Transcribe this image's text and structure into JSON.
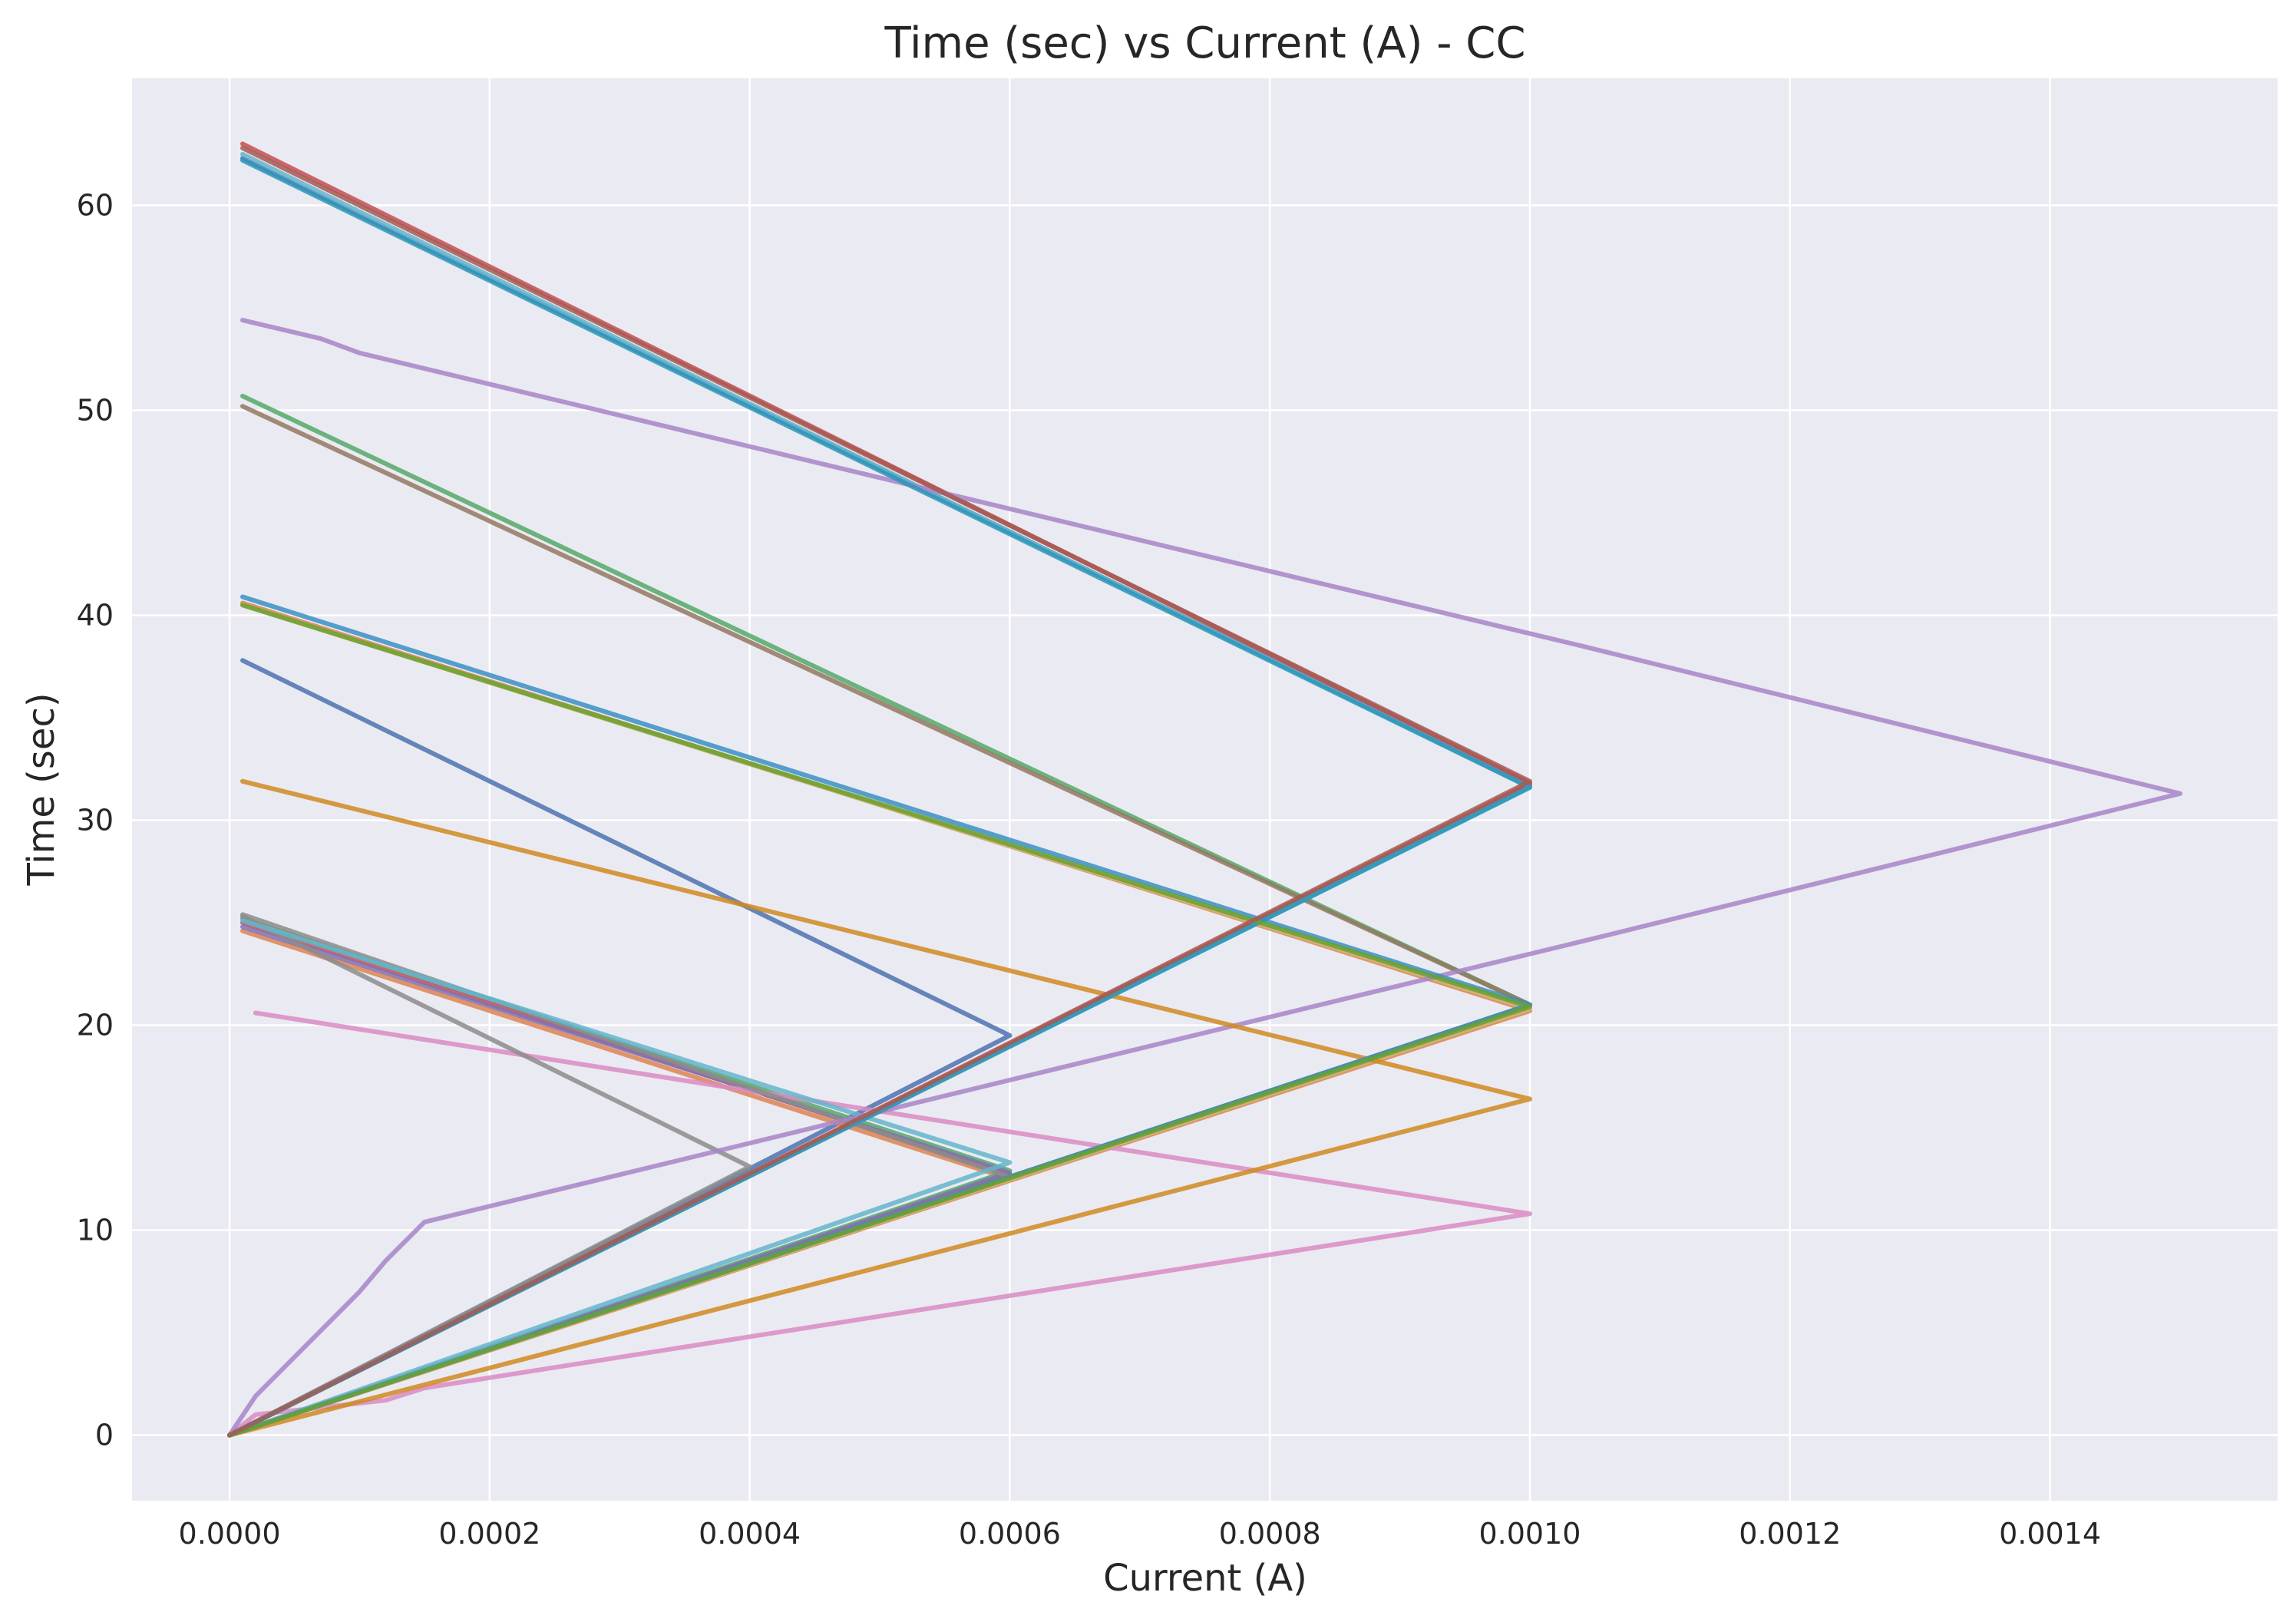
{
  "chart_data": {
    "type": "line",
    "title": "Time (sec) vs Current (A) - CC",
    "xlabel": "Current (A)",
    "ylabel": "Time (sec)",
    "xlim": [
      -7.5e-05,
      0.001575
    ],
    "ylim": [
      -3.2,
      66.2
    ],
    "x_ticks": [
      {
        "value": 0.0,
        "label": "0.0000"
      },
      {
        "value": 0.0002,
        "label": "0.0002"
      },
      {
        "value": 0.0004,
        "label": "0.0004"
      },
      {
        "value": 0.0006,
        "label": "0.0006"
      },
      {
        "value": 0.0008,
        "label": "0.0008"
      },
      {
        "value": 0.001,
        "label": "0.0010"
      },
      {
        "value": 0.0012,
        "label": "0.0012"
      },
      {
        "value": 0.0014,
        "label": "0.0014"
      }
    ],
    "y_ticks": [
      {
        "value": 0,
        "label": "0"
      },
      {
        "value": 10,
        "label": "10"
      },
      {
        "value": 20,
        "label": "20"
      },
      {
        "value": 30,
        "label": "30"
      },
      {
        "value": 40,
        "label": "40"
      },
      {
        "value": 50,
        "label": "50"
      },
      {
        "value": 60,
        "label": "60"
      }
    ],
    "grid": true,
    "background": "#eaeaf2",
    "series": [
      {
        "color": "#4c72b0",
        "x": [
          0,
          0.0006,
          1e-05
        ],
        "y": [
          0,
          19.5,
          37.8
        ]
      },
      {
        "color": "#4c72b0",
        "x": [
          0,
          0.001,
          1e-05
        ],
        "y": [
          0,
          31.7,
          62.3
        ]
      },
      {
        "color": "#dd8452",
        "x": [
          0,
          0.0006,
          1e-05
        ],
        "y": [
          0,
          12.5,
          24.6
        ]
      },
      {
        "color": "#dd8452",
        "x": [
          0,
          0.001,
          1e-05
        ],
        "y": [
          0,
          20.7,
          40.6
        ]
      },
      {
        "color": "#55a868",
        "x": [
          0,
          0.0006,
          1e-05
        ],
        "y": [
          0,
          12.9,
          25.2
        ]
      },
      {
        "color": "#55a868",
        "x": [
          0,
          0.001,
          1e-05
        ],
        "y": [
          0,
          21.0,
          50.7
        ]
      },
      {
        "color": "#c44e52",
        "x": [
          0,
          0.0006,
          1e-05
        ],
        "y": [
          0,
          12.7,
          25.0
        ]
      },
      {
        "color": "#c44e52",
        "x": [
          0,
          0.001,
          1e-05
        ],
        "y": [
          0,
          31.8,
          63.0
        ]
      },
      {
        "color": "#8172b3",
        "x": [
          0,
          0.0006,
          1e-05
        ],
        "y": [
          0,
          12.8,
          24.8
        ]
      },
      {
        "color": "#937860",
        "x": [
          0,
          0.001,
          1e-05
        ],
        "y": [
          0,
          21.0,
          50.2
        ]
      },
      {
        "color": "#da8bc3",
        "x": [
          0,
          2e-05,
          0.00012,
          0.00015,
          0.001,
          2e-05
        ],
        "y": [
          0,
          1.0,
          1.7,
          2.3,
          10.8,
          20.6
        ]
      },
      {
        "color": "#8c8c8c",
        "x": [
          0,
          0.0004,
          1e-05
        ],
        "y": [
          0,
          13.1,
          25.3
        ]
      },
      {
        "color": "#8c8c8c",
        "x": [
          0,
          0.0006,
          1e-05
        ],
        "y": [
          0,
          12.6,
          25.4
        ]
      },
      {
        "color": "#ccb974",
        "x": [
          0,
          0.001,
          1e-05
        ],
        "y": [
          0,
          20.8,
          40.5
        ]
      },
      {
        "color": "#64b5cd",
        "x": [
          0,
          0.0006,
          1e-05
        ],
        "y": [
          0,
          13.3,
          25.1
        ]
      },
      {
        "color": "#64b5cd",
        "x": [
          0,
          0.001,
          1e-05
        ],
        "y": [
          0,
          31.6,
          62.5
        ]
      },
      {
        "color": "#a785c8",
        "x": [
          0,
          2e-05,
          0.0001,
          0.00012,
          0.00015,
          0.00106,
          0.0015,
          0.00104,
          0.0001,
          7e-05,
          1e-05
        ],
        "y": [
          0,
          1.9,
          7.0,
          8.5,
          10.4,
          24.4,
          31.3,
          38.5,
          52.8,
          53.5,
          54.4
        ]
      },
      {
        "color": "#d08a22",
        "x": [
          0,
          0.001,
          1e-05
        ],
        "y": [
          0,
          16.4,
          31.9
        ]
      },
      {
        "color": "#3b8fc4",
        "x": [
          0,
          0.001,
          1e-05
        ],
        "y": [
          0,
          21.0,
          40.9
        ]
      },
      {
        "color": "#2c97b8",
        "x": [
          0,
          0.001,
          1e-05
        ],
        "y": [
          0,
          31.6,
          62.2
        ]
      },
      {
        "color": "#6aa030",
        "x": [
          0,
          0.001,
          1e-05
        ],
        "y": [
          0,
          20.9,
          40.5
        ]
      },
      {
        "color": "#a45a52",
        "x": [
          0,
          0.001,
          1e-05
        ],
        "y": [
          0,
          31.9,
          62.8
        ]
      }
    ]
  }
}
